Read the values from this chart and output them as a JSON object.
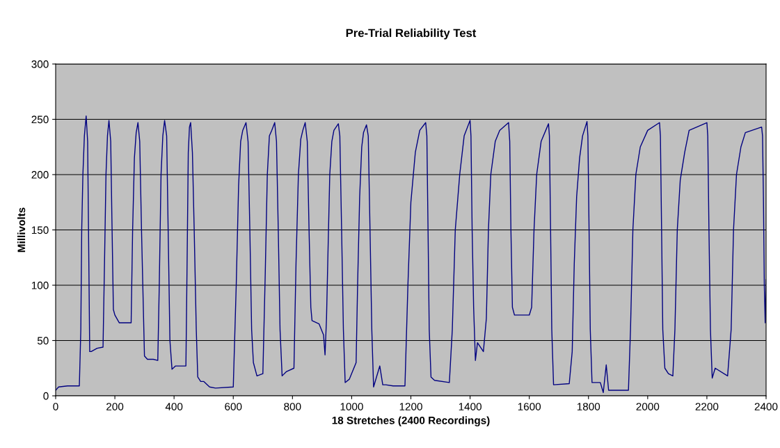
{
  "chart_data": {
    "type": "line",
    "title": "Pre-Trial Reliability Test",
    "xlabel": "18 Stretches (2400 Recordings)",
    "ylabel": "Millivolts",
    "xlim": [
      0,
      2400
    ],
    "xticks": [
      0,
      200,
      400,
      600,
      800,
      1000,
      1200,
      1400,
      1600,
      1800,
      2000,
      2200,
      2400
    ],
    "ylim": [
      0,
      300
    ],
    "yticks": [
      0,
      50,
      100,
      150,
      200,
      250,
      300
    ],
    "grid": "y",
    "marker": "none",
    "line_style": "solid",
    "series": [
      {
        "color": "#000080",
        "x": [
          0,
          10,
          40,
          80,
          85,
          88,
          92,
          97,
          103,
          108,
          111,
          115,
          120,
          140,
          160,
          165,
          170,
          175,
          180,
          186,
          190,
          195,
          200,
          215,
          230,
          255,
          260,
          266,
          272,
          278,
          284,
          290,
          300,
          310,
          330,
          345,
          350,
          356,
          362,
          368,
          375,
          380,
          386,
          393,
          405,
          420,
          440,
          444,
          448,
          452,
          456,
          462,
          468,
          475,
          480,
          490,
          500,
          520,
          540,
          600,
          610,
          618,
          625,
          632,
          643,
          650,
          656,
          662,
          668,
          680,
          700,
          708,
          715,
          722,
          730,
          740,
          746,
          752,
          758,
          765,
          780,
          805,
          812,
          820,
          828,
          835,
          843,
          850,
          856,
          862,
          866,
          890,
          905,
          910,
          915,
          920,
          926,
          933,
          940,
          955,
          960,
          966,
          972,
          978,
          992,
          1015,
          1020,
          1027,
          1034,
          1040,
          1050,
          1056,
          1062,
          1068,
          1074,
          1095,
          1105,
          1115,
          1140,
          1180,
          1190,
          1200,
          1215,
          1230,
          1250,
          1254,
          1258,
          1262,
          1268,
          1280,
          1330,
          1340,
          1350,
          1365,
          1380,
          1400,
          1403,
          1407,
          1412,
          1418,
          1425,
          1445,
          1455,
          1462,
          1470,
          1485,
          1500,
          1530,
          1534,
          1538,
          1543,
          1550,
          1600,
          1608,
          1616,
          1625,
          1640,
          1665,
          1668,
          1672,
          1676,
          1682,
          1735,
          1745,
          1752,
          1760,
          1770,
          1780,
          1795,
          1798,
          1802,
          1806,
          1812,
          1840,
          1850,
          1860,
          1868,
          1880,
          1935,
          1942,
          1950,
          1960,
          1975,
          2000,
          2040,
          2043,
          2047,
          2051,
          2058,
          2070,
          2085,
          2092,
          2100,
          2110,
          2125,
          2140,
          2200,
          2203,
          2207,
          2212,
          2218,
          2228,
          2270,
          2282,
          2290,
          2300,
          2315,
          2330,
          2385,
          2388,
          2391,
          2394,
          2397,
          2400
        ],
        "values": [
          5,
          8,
          9,
          9,
          60,
          150,
          200,
          235,
          253,
          230,
          150,
          40,
          40,
          43,
          44,
          120,
          200,
          235,
          249,
          230,
          160,
          78,
          73,
          66,
          66,
          66,
          150,
          215,
          238,
          247,
          230,
          150,
          36,
          33,
          33,
          32,
          100,
          200,
          235,
          249,
          235,
          150,
          50,
          24,
          27,
          27,
          27,
          120,
          220,
          243,
          247,
          220,
          150,
          60,
          17,
          13,
          13,
          8,
          7,
          8,
          100,
          190,
          230,
          240,
          247,
          230,
          150,
          60,
          30,
          18,
          20,
          110,
          200,
          235,
          240,
          247,
          230,
          150,
          60,
          18,
          22,
          25,
          120,
          200,
          232,
          240,
          247,
          230,
          150,
          80,
          68,
          65,
          55,
          37,
          70,
          130,
          200,
          230,
          240,
          246,
          235,
          150,
          60,
          12,
          15,
          30,
          100,
          180,
          225,
          238,
          245,
          235,
          150,
          60,
          8,
          27,
          10,
          10,
          9,
          9,
          100,
          175,
          220,
          240,
          247,
          235,
          150,
          60,
          17,
          14,
          12,
          60,
          150,
          200,
          235,
          249,
          235,
          150,
          80,
          32,
          48,
          40,
          70,
          150,
          200,
          230,
          240,
          247,
          230,
          150,
          80,
          73,
          73,
          80,
          150,
          200,
          230,
          246,
          235,
          150,
          60,
          10,
          11,
          40,
          120,
          180,
          215,
          235,
          248,
          235,
          150,
          60,
          12,
          12,
          3,
          28,
          5,
          5,
          5,
          60,
          150,
          200,
          225,
          240,
          247,
          235,
          150,
          60,
          25,
          20,
          18,
          60,
          150,
          195,
          220,
          240,
          247,
          235,
          150,
          60,
          16,
          25,
          18,
          60,
          150,
          200,
          225,
          238,
          243,
          235,
          180,
          100,
          66,
          105
        ]
      }
    ]
  }
}
